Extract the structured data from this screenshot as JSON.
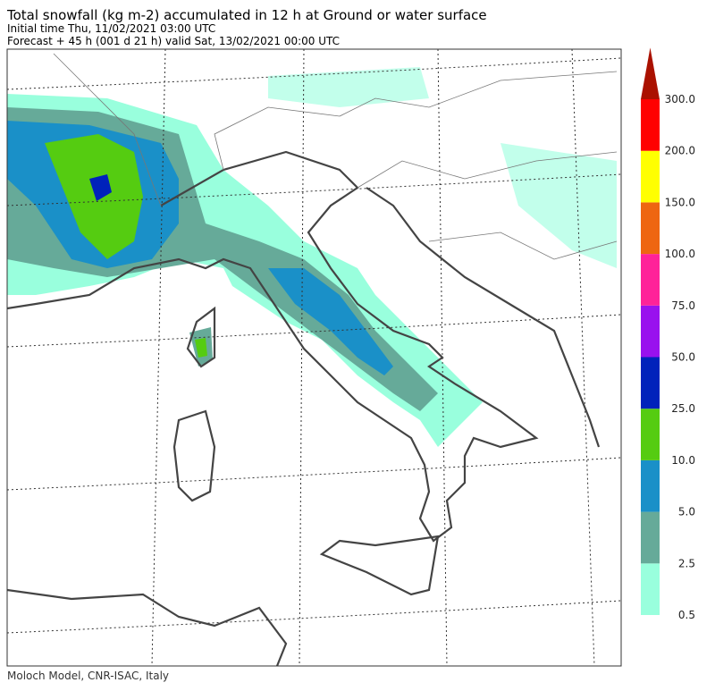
{
  "header": {
    "title": "Total snowfall (kg m-2) accumulated in  12 h at Ground or water surface",
    "initial_time": "Initial time  Thu, 11/02/2021  03:00 UTC",
    "forecast": "Forecast  +  45 h  (001 d 21 h)  valid Sat, 13/02/2021 00:00 UTC"
  },
  "legend": {
    "levels": [
      "0.5",
      "2.5",
      "5.0",
      "10.0",
      "25.0",
      "50.0",
      "75.0",
      "100.0",
      "150.0",
      "200.0",
      "300.0"
    ],
    "colors": [
      "#99ffdd",
      "#66aa99",
      "#1a90c8",
      "#55cc11",
      "#0022bb",
      "#9911ee",
      "#ff2299",
      "#ee6611",
      "#ffff00",
      "#ff0000",
      "#aa1100"
    ]
  },
  "footer": "Moloch Model, CNR-ISAC, Italy"
}
